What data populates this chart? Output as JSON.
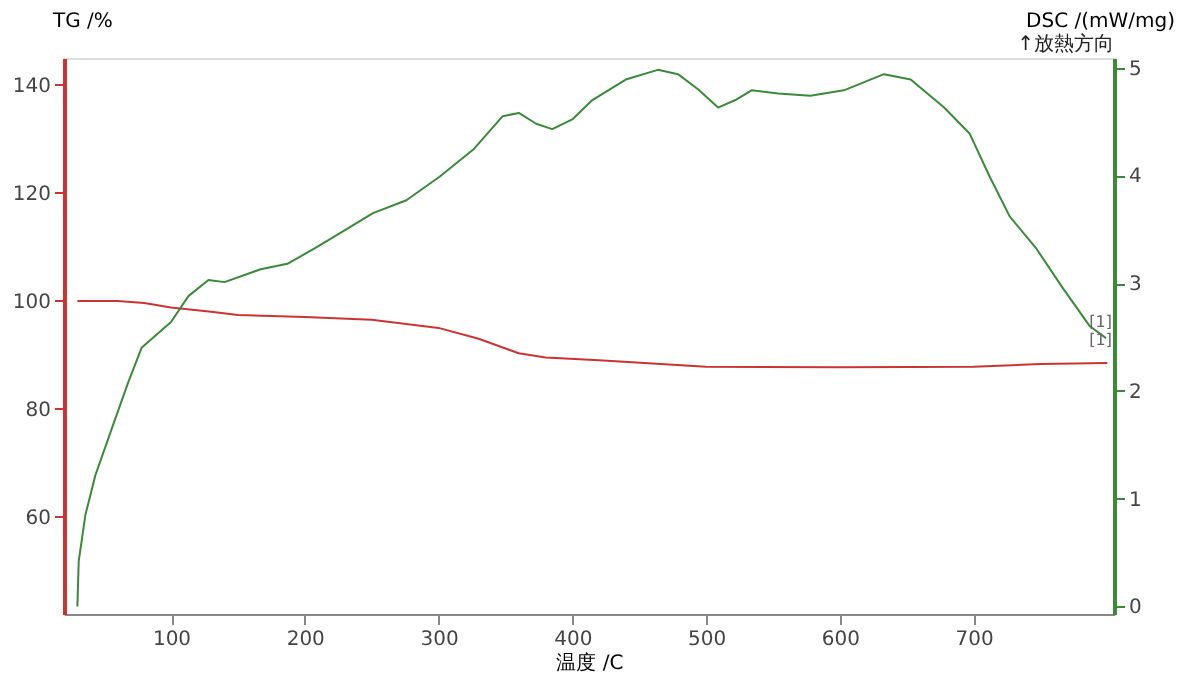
{
  "chart_data": {
    "type": "line",
    "xlabel": "温度 /C",
    "ylabel": "TG /%",
    "y2label": "DSC /(mW/mg)",
    "annotations": [
      "↑放熱方向",
      {
        "text": "[1]",
        "x": 795,
        "y": 96
      },
      {
        "text": "[1]",
        "x": 795,
        "y": 92.5
      }
    ],
    "xlim": [
      20,
      805
    ],
    "xticks": [
      100,
      200,
      300,
      400,
      500,
      600,
      700
    ],
    "ylim": [
      42,
      145
    ],
    "yticks": [
      60,
      80,
      100,
      120,
      140
    ],
    "y2lim": [
      -0.07,
      5.09
    ],
    "y2ticks": [
      0,
      1,
      2,
      3,
      4,
      5
    ],
    "grid": false,
    "marker": "none",
    "line_style": "solid",
    "series": [
      {
        "color": "#cc3333",
        "x": [
          30,
          60,
          80,
          100,
          130,
          150,
          200,
          250,
          300,
          330,
          360,
          380,
          420,
          500,
          600,
          700,
          750,
          800
        ],
        "values": [
          100,
          100,
          99.6,
          98.8,
          98,
          97.4,
          97,
          96.5,
          95,
          93,
          90.3,
          89.5,
          89,
          87.8,
          87.7,
          87.8,
          88.3,
          88.5
        ]
      },
      {
        "color": "#3a8a3a",
        "axis": "y2",
        "x": [
          30,
          31,
          36,
          43.5,
          56,
          68,
          78,
          88,
          100,
          113,
          128,
          140,
          167,
          187,
          207,
          227,
          251,
          276,
          301,
          326,
          348,
          360,
          373,
          385,
          400,
          415,
          440,
          464,
          479,
          494,
          509,
          522,
          534,
          554,
          578,
          603,
          633,
          653,
          678,
          697,
          712,
          727,
          747,
          767,
          787,
          799
        ],
        "values": [
          0,
          0.42,
          0.85,
          1.22,
          1.66,
          2.08,
          2.4,
          2.51,
          2.64,
          2.88,
          3.03,
          3.01,
          3.13,
          3.18,
          3.32,
          3.47,
          3.65,
          3.77,
          3.99,
          4.24,
          4.55,
          4.58,
          4.48,
          4.43,
          4.52,
          4.7,
          4.89,
          4.98,
          4.94,
          4.8,
          4.63,
          4.7,
          4.79,
          4.76,
          4.74,
          4.79,
          4.94,
          4.89,
          4.63,
          4.39,
          3.99,
          3.62,
          3.32,
          2.95,
          2.6,
          2.49
        ]
      }
    ]
  }
}
